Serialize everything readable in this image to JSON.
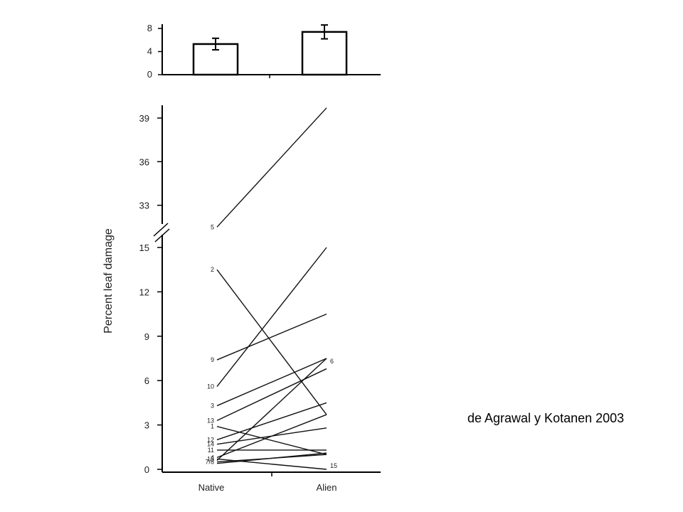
{
  "credit": "de Agrawal y Kotanen 2003",
  "chart_data": [
    {
      "type": "bar",
      "categories": [
        "Native",
        "Alien"
      ],
      "values": [
        5.3,
        7.4
      ],
      "errors": [
        1.0,
        1.2
      ],
      "ylim": [
        0,
        8
      ],
      "yticks": [
        "0",
        "4",
        "8"
      ]
    },
    {
      "type": "line",
      "ylabel": "Percent leaf damage",
      "categories": [
        "Native",
        "Alien"
      ],
      "yticks_lower": [
        "0",
        "3",
        "6",
        "9",
        "12",
        "15"
      ],
      "yticks_upper": [
        "33",
        "36",
        "39"
      ],
      "axis_break": [
        15,
        31.5
      ],
      "lines": [
        {
          "label": "5",
          "native": 31.5,
          "alien": 39.7
        },
        {
          "label": "2",
          "native": 13.5,
          "alien": 3.7
        },
        {
          "label": "9",
          "native": 7.4,
          "alien": 10.5
        },
        {
          "label": "10",
          "native": 5.6,
          "alien": 15.0
        },
        {
          "label": "3",
          "native": 4.3,
          "alien": 7.5
        },
        {
          "label": "13",
          "native": 3.3,
          "alien": 6.8
        },
        {
          "label": "1",
          "native": 2.9,
          "alien": 1.0
        },
        {
          "label": "12",
          "native": 2.0,
          "alien": 4.5
        },
        {
          "label": "14",
          "native": 1.7,
          "alien": 2.8
        },
        {
          "label": "11",
          "native": 1.3,
          "alien": 1.3
        },
        {
          "label": "4",
          "native": 0.8,
          "alien": 3.7
        },
        {
          "label": "",
          "native": 0.6,
          "alien": 7.5
        },
        {
          "label": "7/8",
          "native": 0.5,
          "alien": 1.0
        },
        {
          "label": "",
          "native": 0.4,
          "alien": 1.1
        },
        {
          "label": "15",
          "native": 0.7,
          "alien": 0.0
        }
      ],
      "alien_labels": [
        {
          "label": "6",
          "value": 7.5
        },
        {
          "label": "15",
          "value": 0.0
        }
      ]
    }
  ]
}
